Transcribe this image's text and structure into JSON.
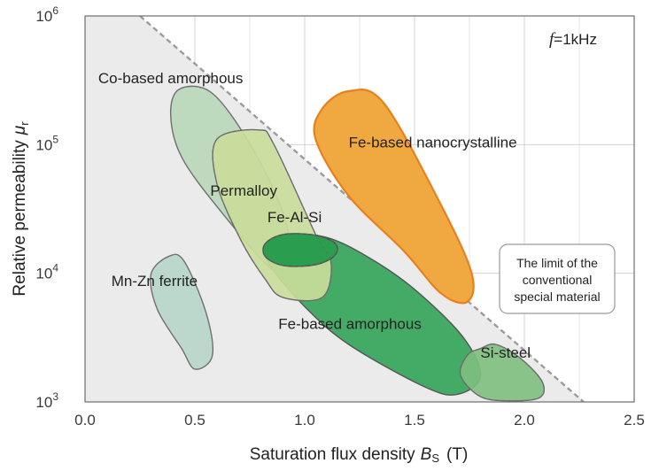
{
  "chart_data": {
    "type": "scatter",
    "title": "",
    "xlabel": "Saturation flux density",
    "xlabel_symbol": "B",
    "xlabel_symbol_sub": "S",
    "xlabel_unit": "(T)",
    "ylabel": "Relative permeability",
    "ylabel_symbol": "μ",
    "ylabel_symbol_sub": "r",
    "xlim": [
      0,
      2.5
    ],
    "ylim": [
      1000,
      1000000
    ],
    "yscale": "log",
    "grid": true,
    "x_ticks": [
      "0.0",
      "0.5",
      "1.0",
      "1.5",
      "2.0",
      "2.5"
    ],
    "y_ticks": [
      {
        "base": "10",
        "exp": "3"
      },
      {
        "base": "10",
        "exp": "4"
      },
      {
        "base": "10",
        "exp": "5"
      },
      {
        "base": "10",
        "exp": "6"
      }
    ],
    "frequency_note": {
      "symbol": "f",
      "text": "=1kHz"
    },
    "limit_line": {
      "points": [
        [
          0.25,
          1000000
        ],
        [
          2.27,
          1000
        ]
      ],
      "label_lines": [
        "The limit of the",
        "conventional",
        "special material"
      ]
    },
    "regions": [
      {
        "name": "Co-based amorphous",
        "color": "#b9d8b9",
        "outline": "#6f6f6f",
        "points": [
          [
            0.43,
            270000
          ],
          [
            0.58,
            250000
          ],
          [
            0.76,
            95000
          ],
          [
            0.9,
            30000
          ],
          [
            0.93,
            14000
          ],
          [
            0.86,
            10500
          ],
          [
            0.62,
            30000
          ],
          [
            0.44,
            80000
          ],
          [
            0.39,
            170000
          ]
        ],
        "label_at": [
          0.06,
          300000
        ]
      },
      {
        "name": "Permalloy",
        "color": "#c9dc9a",
        "outline": "#6f6f6f",
        "points": [
          [
            0.6,
            110000
          ],
          [
            0.79,
            130000
          ],
          [
            0.86,
            100000
          ],
          [
            1.05,
            20000
          ],
          [
            1.12,
            12000
          ],
          [
            1.08,
            6500
          ],
          [
            0.9,
            6500
          ],
          [
            0.82,
            9000
          ],
          [
            0.71,
            18000
          ],
          [
            0.6,
            50000
          ]
        ],
        "label_at": [
          0.57,
          40000
        ]
      },
      {
        "name": "Fe-Al-Si",
        "color": "#2a9d4e",
        "outline": "#4f4f4f",
        "points": [
          [
            0.82,
            17000
          ],
          [
            0.9,
            20000
          ],
          [
            1.03,
            20000
          ],
          [
            1.12,
            18000
          ],
          [
            1.15,
            15500
          ],
          [
            1.12,
            13000
          ],
          [
            1.03,
            11500
          ],
          [
            0.9,
            11500
          ],
          [
            0.82,
            13500
          ]
        ],
        "label_at": [
          0.83,
          25000
        ]
      },
      {
        "name": "Fe-based amorphous",
        "color": "#3ea862",
        "outline": "#555555",
        "points": [
          [
            0.9,
            20000
          ],
          [
            1.1,
            19000
          ],
          [
            1.3,
            13000
          ],
          [
            1.5,
            7500
          ],
          [
            1.72,
            3200
          ],
          [
            1.8,
            1600
          ],
          [
            1.7,
            1150
          ],
          [
            1.55,
            1300
          ],
          [
            1.2,
            2800
          ],
          [
            1.0,
            5500
          ],
          [
            0.85,
            11000
          ],
          [
            0.82,
            16000
          ]
        ],
        "label_at": [
          0.88,
          3700
        ]
      },
      {
        "name": "Fe-based nanocrystalline",
        "color": "#f0a840",
        "outline": "#e8801e",
        "points": [
          [
            1.08,
            190000
          ],
          [
            1.2,
            260000
          ],
          [
            1.36,
            210000
          ],
          [
            1.62,
            34000
          ],
          [
            1.76,
            10000
          ],
          [
            1.74,
            6000
          ],
          [
            1.62,
            7000
          ],
          [
            1.45,
            15000
          ],
          [
            1.2,
            40000
          ],
          [
            1.05,
            110000
          ]
        ],
        "label_at": [
          1.2,
          95000
        ]
      },
      {
        "name": "Mn-Zn ferrite",
        "color": "#b9d6c9",
        "outline": "#6f6f6f",
        "points": [
          [
            0.3,
            9800
          ],
          [
            0.38,
            13500
          ],
          [
            0.45,
            12500
          ],
          [
            0.55,
            5000
          ],
          [
            0.58,
            2300
          ],
          [
            0.5,
            1800
          ],
          [
            0.44,
            2600
          ],
          [
            0.33,
            5200
          ]
        ],
        "label_at": [
          0.12,
          8000
        ]
      },
      {
        "name": "Si-steel",
        "color": "#7fbf7f",
        "outline": "#6f6f6f",
        "points": [
          [
            1.8,
            2600
          ],
          [
            1.87,
            2800
          ],
          [
            1.98,
            2200
          ],
          [
            2.08,
            1450
          ],
          [
            2.07,
            1080
          ],
          [
            1.93,
            1020
          ],
          [
            1.8,
            1100
          ],
          [
            1.71,
            1600
          ],
          [
            1.74,
            2300
          ]
        ],
        "label_at": [
          1.8,
          2200
        ]
      }
    ]
  }
}
